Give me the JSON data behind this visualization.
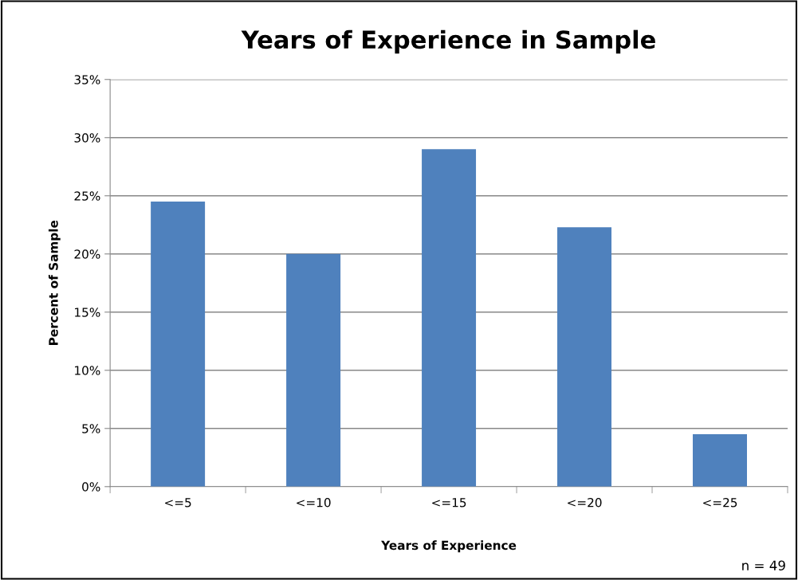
{
  "chart_data": {
    "type": "bar",
    "title": "Years of Experience in Sample",
    "xlabel": "Years of Experience",
    "ylabel": "Percent of Sample",
    "categories": [
      "<=5",
      "<=10",
      "<=15",
      "<=20",
      "<=25"
    ],
    "values": [
      24.5,
      20,
      29,
      22.3,
      4.5
    ],
    "color": "#4f81bd",
    "ylim": [
      0,
      35
    ],
    "yticks": [
      {
        "value": 0,
        "label": "0%"
      },
      {
        "value": 5,
        "label": "5%"
      },
      {
        "value": 10,
        "label": "10%"
      },
      {
        "value": 15,
        "label": "15%"
      },
      {
        "value": 20,
        "label": "20%"
      },
      {
        "value": 25,
        "label": "25%"
      },
      {
        "value": 30,
        "label": "30%"
      },
      {
        "value": 35,
        "label": "35%"
      }
    ],
    "grid": "y",
    "annotations": [
      "n = 49"
    ]
  }
}
